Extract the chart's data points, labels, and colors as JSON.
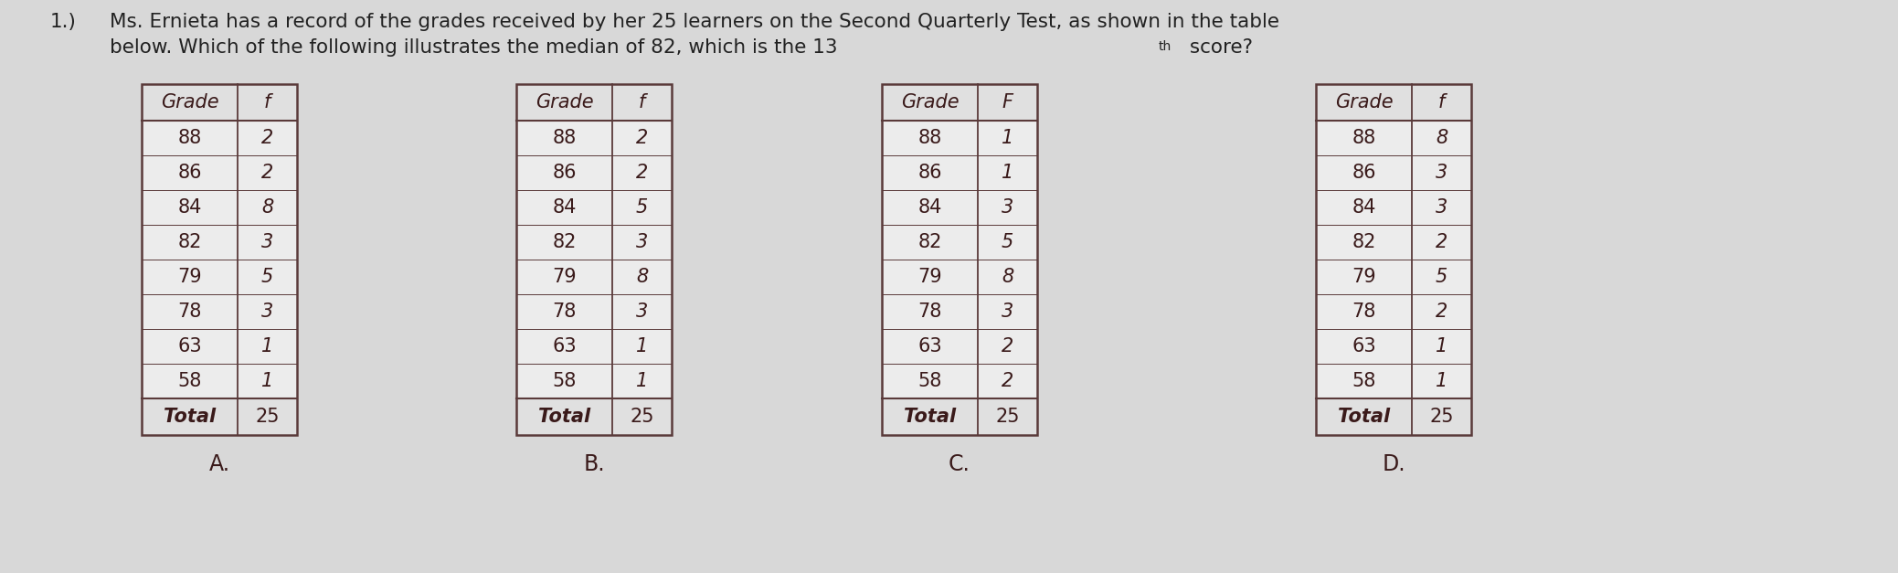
{
  "title_line1": "1.)   Ms. Ernieta has a record of the grades received by her 25 learners on the Second Quarterly Test, as shown in the table",
  "title_line2": "        below. Which of the following illustrates the median of 82, which is the 13th score?",
  "superscript": "th",
  "tables": [
    {
      "label": "A.",
      "headers": [
        "Grade",
        "f"
      ],
      "rows": [
        [
          "88",
          "2"
        ],
        [
          "86",
          "2"
        ],
        [
          "84",
          "8"
        ],
        [
          "82",
          "3"
        ],
        [
          "79",
          "5"
        ],
        [
          "78",
          "3"
        ],
        [
          "63",
          "1"
        ],
        [
          "58",
          "1"
        ]
      ],
      "total": [
        "Total",
        "25"
      ]
    },
    {
      "label": "B.",
      "headers": [
        "Grade",
        "f"
      ],
      "rows": [
        [
          "88",
          "2"
        ],
        [
          "86",
          "2"
        ],
        [
          "84",
          "5"
        ],
        [
          "82",
          "3"
        ],
        [
          "79",
          "8"
        ],
        [
          "78",
          "3"
        ],
        [
          "63",
          "1"
        ],
        [
          "58",
          "1"
        ]
      ],
      "total": [
        "Total",
        "25"
      ]
    },
    {
      "label": "C.",
      "headers": [
        "Grade",
        "F"
      ],
      "rows": [
        [
          "88",
          "1"
        ],
        [
          "86",
          "1"
        ],
        [
          "84",
          "3"
        ],
        [
          "82",
          "5"
        ],
        [
          "79",
          "8"
        ],
        [
          "78",
          "3"
        ],
        [
          "63",
          "2"
        ],
        [
          "58",
          "2"
        ]
      ],
      "total": [
        "Total",
        "25"
      ]
    },
    {
      "label": "D.",
      "headers": [
        "Grade",
        "f"
      ],
      "rows": [
        [
          "88",
          "8"
        ],
        [
          "86",
          "3"
        ],
        [
          "84",
          "3"
        ],
        [
          "82",
          "2"
        ],
        [
          "79",
          "5"
        ],
        [
          "78",
          "2"
        ],
        [
          "63",
          "1"
        ],
        [
          "58",
          "1"
        ]
      ],
      "total": [
        "Total",
        "25"
      ]
    }
  ],
  "bg_color": "#d8d8d8",
  "table_bg": "#e8e8e8",
  "cell_bg": "#e0e0e0",
  "text_color": "#3a1a1a",
  "border_color": "#5a3a3a",
  "title_color": "#222222"
}
